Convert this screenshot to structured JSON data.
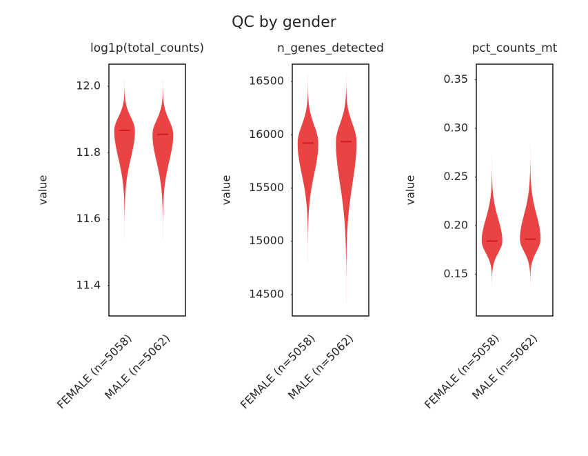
{
  "title": "QC by gender",
  "chart_data": [
    {
      "type": "violin",
      "title": "log1p(total_counts)",
      "ylabel": "value",
      "categories": [
        "FEMALE (n=5058)",
        "MALE (n=5062)"
      ],
      "values": [
        11.867,
        11.855
      ],
      "mins": [
        11.545,
        11.535
      ],
      "maxs": [
        12.02,
        12.02
      ],
      "color": "#e8393a",
      "median_color": "#d7191c",
      "ylim": [
        11.309,
        12.066
      ],
      "yticks": [
        11.4,
        11.6,
        11.8,
        {
          "value": 12.0,
          "label": "12.0"
        }
      ]
    },
    {
      "type": "violin",
      "title": "n_genes_detected",
      "ylabel": "value",
      "categories": [
        "FEMALE (n=5058)",
        "MALE (n=5062)"
      ],
      "values": [
        15922,
        15935
      ],
      "mins": [
        14806,
        14417
      ],
      "maxs": [
        16560,
        16580
      ],
      "color": "#e8393a",
      "median_color": "#d7191c",
      "ylim": [
        14299,
        16662
      ],
      "yticks": [
        14500,
        15000,
        15500,
        16000,
        16500
      ]
    },
    {
      "type": "violin",
      "title": "pct_counts_mt",
      "ylabel": "value",
      "categories": [
        "FEMALE (n=5058)",
        "MALE (n=5062)"
      ],
      "values": [
        0.184,
        0.186
      ],
      "mins": [
        0.137,
        0.137
      ],
      "maxs": [
        0.272,
        0.283
      ],
      "color": "#e8393a",
      "median_color": "#d7191c",
      "ylim": [
        0.107,
        0.366
      ],
      "yticks": [
        0.15,
        {
          "value": 0.2,
          "label": "0.20"
        },
        0.25,
        {
          "value": 0.3,
          "label": "0.30"
        },
        0.35
      ]
    }
  ]
}
